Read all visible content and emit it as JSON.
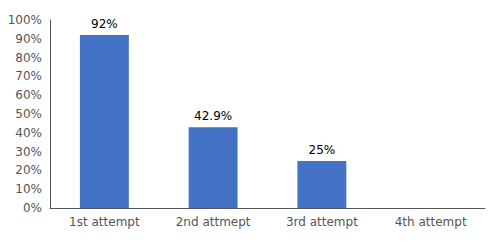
{
  "chart_data": {
    "type": "bar",
    "categories": [
      "1st attempt",
      "2nd attmept",
      "3rd attempt",
      "4th attempt"
    ],
    "values": [
      92,
      42.9,
      25,
      0
    ],
    "value_labels": [
      "92%",
      "42.9%",
      "25%",
      null
    ],
    "data_labels": true,
    "color": "#4472C4",
    "ylim": [
      0,
      100
    ],
    "yticks": [
      {
        "value": 0,
        "label": "0%"
      },
      {
        "value": 10,
        "label": "10%"
      },
      {
        "value": 20,
        "label": "20%"
      },
      {
        "value": 30,
        "label": "30%"
      },
      {
        "value": 40,
        "label": "40%"
      },
      {
        "value": 50,
        "label": "50%"
      },
      {
        "value": 60,
        "label": "60%"
      },
      {
        "value": 70,
        "label": "70%"
      },
      {
        "value": 80,
        "label": "80%"
      },
      {
        "value": 90,
        "label": "90%"
      },
      {
        "value": 100,
        "label": "100%"
      }
    ],
    "grid": false
  }
}
